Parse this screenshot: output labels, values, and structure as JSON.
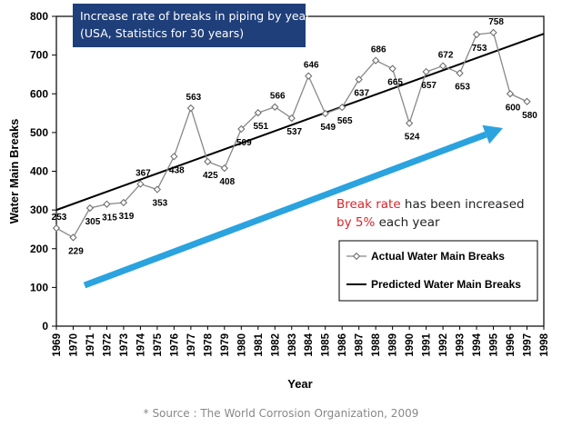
{
  "title_line1": "Increase rate of breaks in piping by year",
  "title_line2": "(USA, Statistics for 30 years)",
  "annotation": {
    "part1_red": "Break rate",
    "part2": " has been increased",
    "part3_red": "by 5%",
    "part4": " each year"
  },
  "source": "* Source : The World Corrosion Organization, 2009",
  "colors": {
    "title_bg": "#1f3f7a",
    "arrow": "#2aa3df",
    "annotation_red": "#d9262b"
  },
  "chart_data": {
    "type": "line",
    "xlabel": "Year",
    "ylabel": "Water Main Breaks",
    "xlim": [
      1969,
      1998
    ],
    "ylim": [
      0,
      800
    ],
    "yticks": [
      0,
      100,
      200,
      300,
      400,
      500,
      600,
      700,
      800
    ],
    "xticks": [
      "1969",
      "1970",
      "1971",
      "1972",
      "1973",
      "1974",
      "1975",
      "1976",
      "1977",
      "1978",
      "1979",
      "1980",
      "1981",
      "1982",
      "1983",
      "1984",
      "1985",
      "1986",
      "1987",
      "1988",
      "1989",
      "1990",
      "1991",
      "1992",
      "1993",
      "1994",
      "1995",
      "1996",
      "1997",
      "1998"
    ],
    "legend_position": "right-middle",
    "grid": false,
    "series": [
      {
        "name": "Actual Water Main Breaks",
        "x": [
          1969,
          1970,
          1971,
          1972,
          1973,
          1974,
          1975,
          1976,
          1977,
          1978,
          1979,
          1980,
          1981,
          1982,
          1983,
          1984,
          1985,
          1986,
          1987,
          1988,
          1989,
          1990,
          1991,
          1992,
          1993,
          1994,
          1995,
          1996,
          1997
        ],
        "values": [
          253,
          229,
          305,
          315,
          319,
          367,
          353,
          438,
          563,
          425,
          408,
          509,
          551,
          566,
          537,
          646,
          549,
          565,
          637,
          686,
          665,
          524,
          657,
          672,
          653,
          753,
          758,
          600,
          580
        ],
        "labels": [
          "253",
          "229",
          "305",
          "315",
          "319",
          "367",
          "353",
          "438",
          "563",
          "425",
          "408",
          "509",
          "551",
          "566",
          "537",
          "646",
          "549",
          "565",
          "637",
          "686",
          "665",
          "524",
          "657",
          "672",
          "653",
          "753",
          "758",
          "600",
          "580"
        ]
      },
      {
        "name": "Predicted Water Main Breaks",
        "x": [
          1969,
          1998
        ],
        "values": [
          300,
          755
        ]
      }
    ]
  }
}
